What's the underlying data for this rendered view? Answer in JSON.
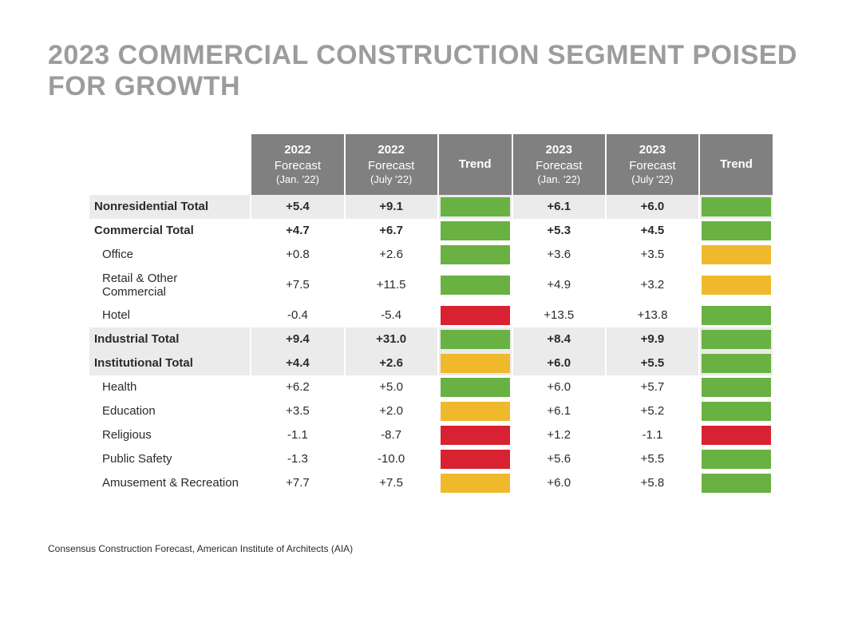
{
  "title": "2023 COMMERCIAL CONSTRUCTION SEGMENT POISED FOR GROWTH",
  "source": "Consensus Construction Forecast, American Institute of Architects (AIA)",
  "colors": {
    "header_bg": "#808080",
    "header_text": "#ffffff",
    "shade_row": "#ebebeb",
    "trend_green": "#6ab144",
    "trend_yellow": "#f0b92c",
    "trend_red": "#d92231"
  },
  "columns": [
    {
      "year": "2022",
      "fc": "Forecast",
      "when": "(Jan. '22)"
    },
    {
      "year": "2022",
      "fc": "Forecast",
      "when": "(July '22)"
    },
    {
      "trend": "Trend"
    },
    {
      "year": "2023",
      "fc": "Forecast",
      "when": "(Jan. '22)"
    },
    {
      "year": "2023",
      "fc": "Forecast",
      "when": "(July '22)"
    },
    {
      "trend": "Trend"
    }
  ],
  "rows": [
    {
      "label": "Nonresidential Total",
      "kind": "total",
      "shade": true,
      "v": [
        "+5.4",
        "+9.1",
        null,
        "+6.1",
        "+6.0",
        null
      ],
      "trend": [
        null,
        null,
        "green",
        null,
        null,
        "green"
      ]
    },
    {
      "label": "Commercial Total",
      "kind": "total",
      "shade": false,
      "v": [
        "+4.7",
        "+6.7",
        null,
        "+5.3",
        "+4.5",
        null
      ],
      "trend": [
        null,
        null,
        "green",
        null,
        null,
        "green"
      ]
    },
    {
      "label": "Office",
      "kind": "sub",
      "shade": false,
      "v": [
        "+0.8",
        "+2.6",
        null,
        "+3.6",
        "+3.5",
        null
      ],
      "trend": [
        null,
        null,
        "green",
        null,
        null,
        "yellow"
      ]
    },
    {
      "label": "Retail & Other Commercial",
      "kind": "sub",
      "shade": false,
      "v": [
        "+7.5",
        "+11.5",
        null,
        "+4.9",
        "+3.2",
        null
      ],
      "trend": [
        null,
        null,
        "green",
        null,
        null,
        "yellow"
      ]
    },
    {
      "label": "Hotel",
      "kind": "sub",
      "shade": false,
      "v": [
        "-0.4",
        "-5.4",
        null,
        "+13.5",
        "+13.8",
        null
      ],
      "trend": [
        null,
        null,
        "red",
        null,
        null,
        "green"
      ]
    },
    {
      "label": "Industrial Total",
      "kind": "total",
      "shade": true,
      "v": [
        "+9.4",
        "+31.0",
        null,
        "+8.4",
        "+9.9",
        null
      ],
      "trend": [
        null,
        null,
        "green",
        null,
        null,
        "green"
      ]
    },
    {
      "label": "Institutional Total",
      "kind": "total",
      "shade": true,
      "v": [
        "+4.4",
        "+2.6",
        null,
        "+6.0",
        "+5.5",
        null
      ],
      "trend": [
        null,
        null,
        "yellow",
        null,
        null,
        "green"
      ]
    },
    {
      "label": "Health",
      "kind": "sub",
      "shade": false,
      "v": [
        "+6.2",
        "+5.0",
        null,
        "+6.0",
        "+5.7",
        null
      ],
      "trend": [
        null,
        null,
        "green",
        null,
        null,
        "green"
      ]
    },
    {
      "label": "Education",
      "kind": "sub",
      "shade": false,
      "v": [
        "+3.5",
        "+2.0",
        null,
        "+6.1",
        "+5.2",
        null
      ],
      "trend": [
        null,
        null,
        "yellow",
        null,
        null,
        "green"
      ]
    },
    {
      "label": "Religious",
      "kind": "sub",
      "shade": false,
      "v": [
        "-1.1",
        "-8.7",
        null,
        "+1.2",
        "-1.1",
        null
      ],
      "trend": [
        null,
        null,
        "red",
        null,
        null,
        "red"
      ]
    },
    {
      "label": "Public Safety",
      "kind": "sub",
      "shade": false,
      "v": [
        "-1.3",
        "-10.0",
        null,
        "+5.6",
        "+5.5",
        null
      ],
      "trend": [
        null,
        null,
        "red",
        null,
        null,
        "green"
      ]
    },
    {
      "label": "Amusement & Recreation",
      "kind": "sub",
      "shade": false,
      "v": [
        "+7.7",
        "+7.5",
        null,
        "+6.0",
        "+5.8",
        null
      ],
      "trend": [
        null,
        null,
        "yellow",
        null,
        null,
        "green"
      ]
    }
  ]
}
